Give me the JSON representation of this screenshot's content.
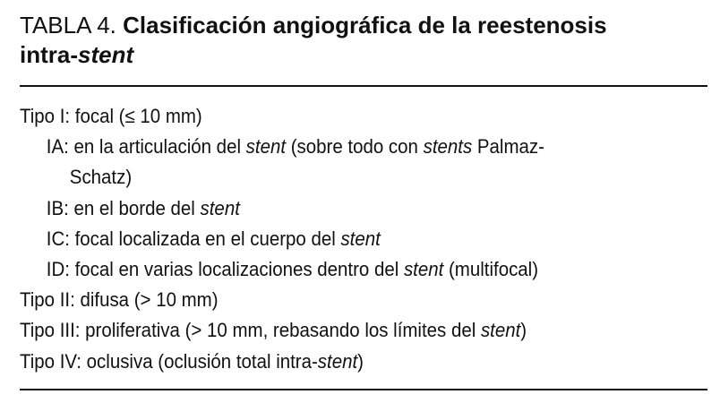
{
  "title": {
    "label": "TABLA 4. ",
    "line1": "Clasificación angiográfica de la reestenosis",
    "line2_prefix": "intra-",
    "line2_italic": "stent"
  },
  "rows": [
    {
      "level": 0,
      "segments": [
        {
          "text": "Tipo I: focal (≤ 10 mm)"
        }
      ]
    },
    {
      "level": 1,
      "segments": [
        {
          "text": "IA: en la articulación del "
        },
        {
          "text": "stent",
          "italic": true
        },
        {
          "text": " (sobre todo con "
        },
        {
          "text": "stents",
          "italic": true
        },
        {
          "text": " Palmaz-"
        }
      ]
    },
    {
      "level": 2,
      "segments": [
        {
          "text": "Schatz)"
        }
      ]
    },
    {
      "level": 1,
      "segments": [
        {
          "text": "IB: en el borde del "
        },
        {
          "text": "stent",
          "italic": true
        }
      ]
    },
    {
      "level": 1,
      "segments": [
        {
          "text": "IC: focal localizada en el cuerpo del "
        },
        {
          "text": "stent",
          "italic": true
        }
      ]
    },
    {
      "level": 1,
      "segments": [
        {
          "text": "ID: focal en varias localizaciones dentro del "
        },
        {
          "text": "stent",
          "italic": true
        },
        {
          "text": " (multifocal)"
        }
      ]
    },
    {
      "level": 0,
      "segments": [
        {
          "text": "Tipo II: difusa (> 10 mm)"
        }
      ]
    },
    {
      "level": 0,
      "segments": [
        {
          "text": "Tipo III: proliferativa (> 10 mm, rebasando los límites del "
        },
        {
          "text": "stent",
          "italic": true
        },
        {
          "text": ")"
        }
      ]
    },
    {
      "level": 0,
      "segments": [
        {
          "text": "Tipo IV: oclusiva (oclusión total intra-"
        },
        {
          "text": "stent",
          "italic": true
        },
        {
          "text": ")"
        }
      ]
    }
  ]
}
